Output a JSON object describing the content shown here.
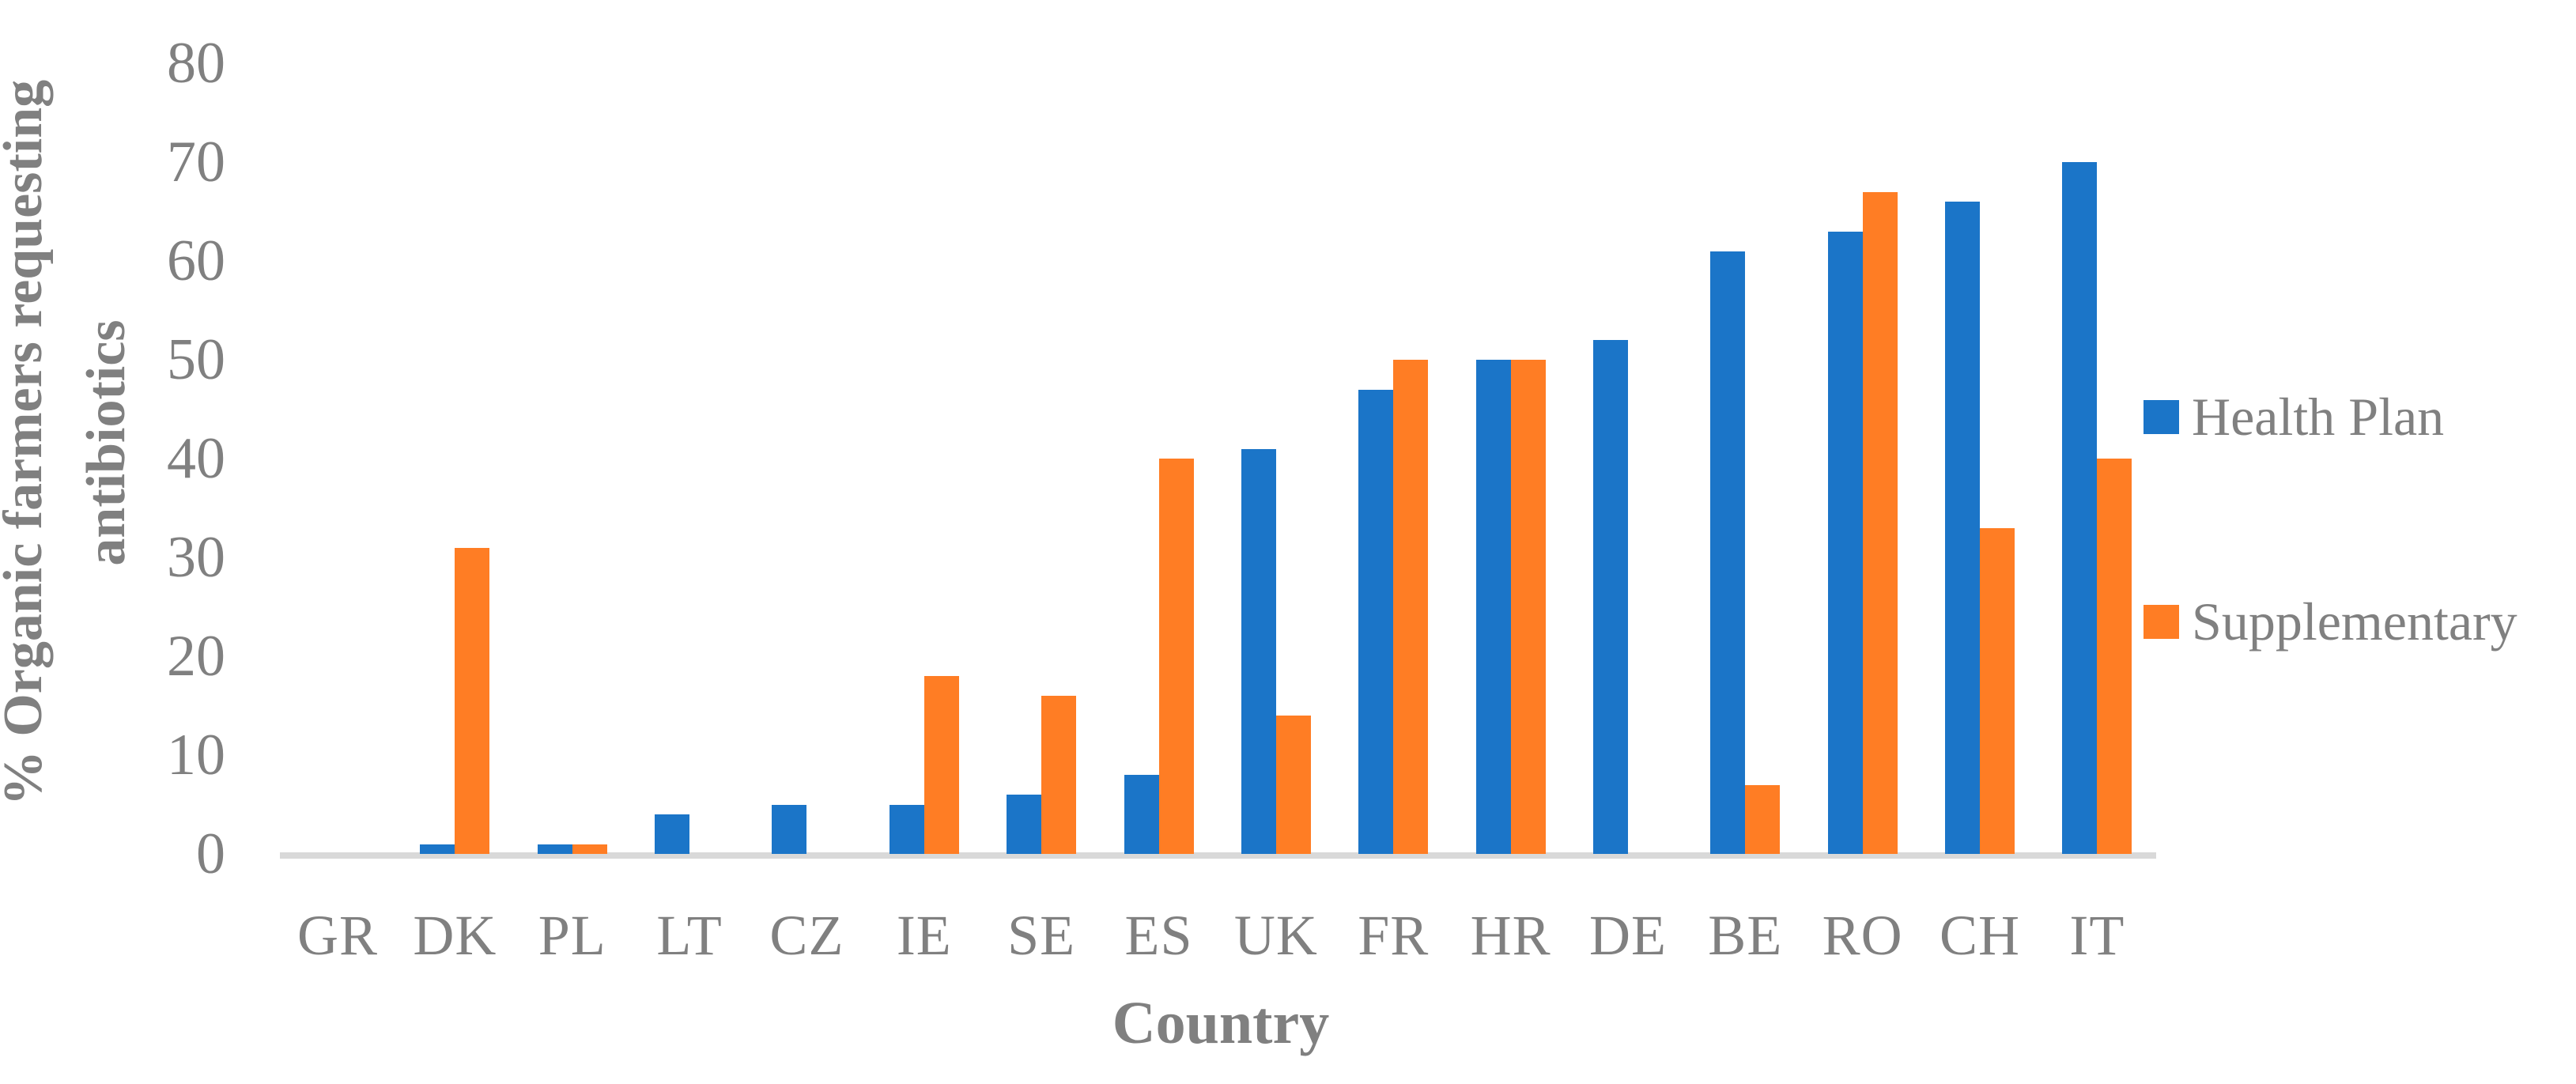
{
  "figure": {
    "background": "#ffffff",
    "text_color": "#808080",
    "axis_line_color": "#d9d9d9"
  },
  "chart_data": {
    "type": "bar",
    "title": "",
    "xlabel": "Country",
    "ylabel": "% Organic farmers requesting\nantibiotics",
    "categories": [
      "GR",
      "DK",
      "PL",
      "LT",
      "CZ",
      "IE",
      "SE",
      "ES",
      "UK",
      "FR",
      "HR",
      "DE",
      "BE",
      "RO",
      "CH",
      "IT"
    ],
    "series": [
      {
        "name": "Health Plan",
        "color": "#1b75c8",
        "values": [
          0,
          1,
          1,
          4,
          5,
          5,
          6,
          8,
          41,
          47,
          50,
          52,
          61,
          63,
          66,
          70
        ]
      },
      {
        "name": "Supplementary",
        "color": "#ff7d24",
        "values": [
          0,
          31,
          1,
          0,
          0,
          18,
          16,
          40,
          14,
          50,
          50,
          0,
          7,
          67,
          33,
          40
        ]
      }
    ],
    "yticks": [
      0,
      10,
      20,
      30,
      40,
      50,
      60,
      70,
      80
    ],
    "ylim": [
      0,
      80
    ],
    "grid": "off",
    "legend_position": "right"
  }
}
